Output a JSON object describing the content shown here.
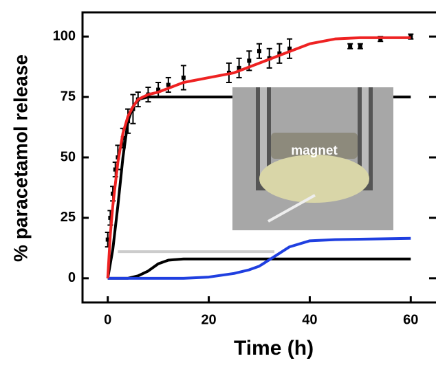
{
  "chart_data": {
    "type": "line",
    "xlabel": "Time (h)",
    "ylabel": "% paracetamol release",
    "inset_text": "magnet",
    "xlim": [
      -5,
      65
    ],
    "ylim": [
      -10,
      110
    ],
    "xticks": [
      0,
      20,
      40,
      60
    ],
    "yticks": [
      0,
      25,
      50,
      75,
      100
    ],
    "series": [
      {
        "type": "line",
        "color": "#000000",
        "x": [
          0,
          1,
          2,
          3,
          4,
          5,
          6,
          8,
          60
        ],
        "values": [
          0,
          12,
          30,
          50,
          65,
          71,
          74,
          75,
          75
        ]
      },
      {
        "type": "line",
        "color": "#000000",
        "x": [
          0,
          4,
          6,
          8,
          10,
          12,
          15,
          60
        ],
        "values": [
          0,
          0,
          1,
          3,
          6,
          7.5,
          8,
          8
        ]
      },
      {
        "type": "line",
        "color": "#cccccc",
        "x": [
          2,
          33
        ],
        "values": [
          11,
          11
        ]
      },
      {
        "type": "line",
        "color": "#1f3fe0",
        "x": [
          0,
          15,
          20,
          25,
          28,
          30,
          33,
          36,
          40,
          45,
          60
        ],
        "values": [
          0,
          0,
          0.5,
          2,
          3.5,
          5,
          9,
          13,
          15.5,
          16,
          16.5
        ]
      },
      {
        "type": "scatter",
        "color": "#000000",
        "x": [
          0,
          0.5,
          1,
          1.5,
          2,
          3,
          4,
          5,
          6,
          8,
          10,
          12,
          15,
          24,
          26,
          28,
          30,
          32,
          34,
          36,
          48,
          50,
          54,
          60
        ],
        "values": [
          16,
          25,
          35,
          45,
          50,
          58,
          65,
          70,
          74,
          76,
          78,
          80,
          83,
          85,
          87,
          90,
          94,
          91,
          93,
          95,
          96,
          96,
          99,
          100
        ],
        "errors": [
          3,
          3,
          3,
          3,
          5,
          4,
          5,
          6,
          3,
          3,
          3,
          3,
          5,
          4,
          4,
          4,
          3,
          4,
          4,
          4,
          1,
          1,
          1,
          1
        ]
      },
      {
        "type": "line",
        "color": "#ee2222",
        "x": [
          0,
          0.5,
          1,
          2,
          3,
          4,
          5,
          6,
          8,
          10,
          15,
          20,
          25,
          30,
          35,
          40,
          45,
          50,
          55,
          60
        ],
        "values": [
          0,
          18,
          30,
          48,
          60,
          67,
          71,
          74,
          76,
          77,
          81,
          83,
          85,
          89,
          93,
          97,
          99,
          99.5,
          99.5,
          99.5
        ]
      }
    ]
  }
}
